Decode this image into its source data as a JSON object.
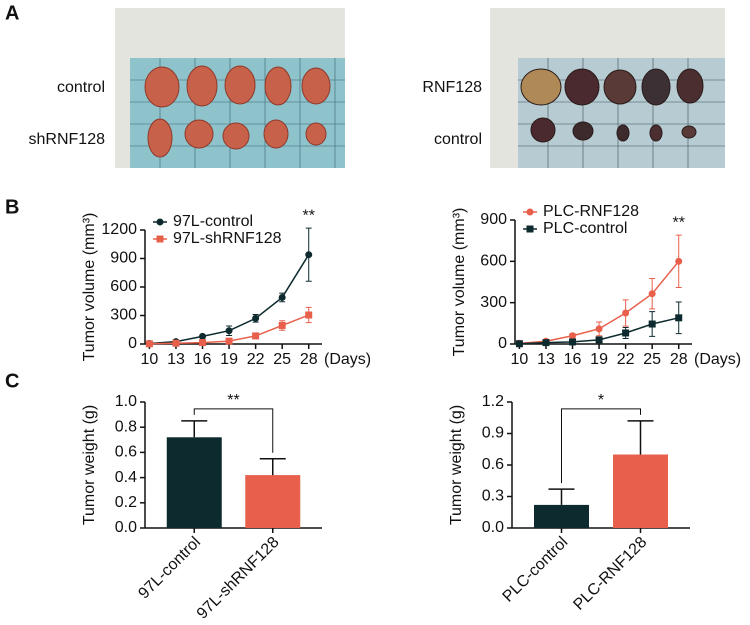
{
  "panel_labels": [
    "A",
    "B",
    "C"
  ],
  "photos": [
    {
      "row_labels": [
        "control",
        "shRNF128"
      ]
    },
    {
      "row_labels": [
        "RNF128",
        "control"
      ]
    }
  ],
  "chart_data": [
    {
      "type": "line",
      "ylabel": "Tumor volume (mm³)",
      "xlabel": "(Days)",
      "annotation": "**",
      "x": [
        10,
        13,
        16,
        19,
        22,
        25,
        28
      ],
      "xlim": [
        9.5,
        29.5
      ],
      "xticks": [
        10,
        13,
        16,
        19,
        22,
        25,
        28
      ],
      "ylim": [
        0,
        1200
      ],
      "yticks": [
        0,
        300,
        600,
        900,
        1200
      ],
      "legend": "upper left",
      "series": [
        {
          "name": "97L-control",
          "color": "#0d2b2e",
          "marker": "circle",
          "values": [
            5,
            25,
            80,
            140,
            270,
            490,
            940
          ],
          "errors": [
            3,
            8,
            15,
            50,
            40,
            45,
            280
          ]
        },
        {
          "name": "97L-shRNF128",
          "color": "#e8604c",
          "marker": "square",
          "values": [
            2,
            8,
            15,
            30,
            85,
            195,
            305
          ],
          "errors": [
            2,
            3,
            5,
            10,
            15,
            50,
            80
          ]
        }
      ]
    },
    {
      "type": "line",
      "ylabel": "Tumor volume (mm³)",
      "xlabel": "(Days)",
      "annotation": "**",
      "x": [
        10,
        13,
        16,
        19,
        22,
        25,
        28
      ],
      "xlim": [
        9.5,
        29.5
      ],
      "xticks": [
        10,
        13,
        16,
        19,
        22,
        25,
        28
      ],
      "ylim": [
        0,
        900
      ],
      "yticks": [
        0,
        300,
        600,
        900
      ],
      "legend": "upper left",
      "series": [
        {
          "name": "PLC-RNF128",
          "color": "#e8604c",
          "marker": "circle",
          "values": [
            5,
            20,
            60,
            110,
            225,
            365,
            600
          ],
          "errors": [
            3,
            8,
            15,
            50,
            95,
            110,
            190
          ]
        },
        {
          "name": "PLC-control",
          "color": "#0d2b2e",
          "marker": "square",
          "values": [
            2,
            10,
            15,
            30,
            80,
            145,
            190
          ],
          "errors": [
            2,
            5,
            8,
            20,
            40,
            90,
            115
          ]
        }
      ]
    },
    {
      "type": "bar",
      "ylabel": "Tumor weight (g)",
      "annotation": "**",
      "categories": [
        "97L-control",
        "97L-shRNF128"
      ],
      "values": [
        0.72,
        0.42
      ],
      "errors": [
        0.13,
        0.13
      ],
      "colors": [
        "#0d2b2e",
        "#e8604c"
      ],
      "ylim": [
        0,
        1.0
      ],
      "yticks": [
        {
          "value": 0,
          "label": "0.0"
        },
        0.2,
        0.4,
        0.6,
        0.8,
        {
          "value": 1,
          "label": "1.0"
        }
      ]
    },
    {
      "type": "bar",
      "ylabel": "Tumor weight (g)",
      "annotation": "*",
      "categories": [
        "PLC-control",
        "PLC-RNF128"
      ],
      "values": [
        0.22,
        0.7
      ],
      "errors": [
        0.15,
        0.32
      ],
      "colors": [
        "#0d2b2e",
        "#e8604c"
      ],
      "ylim": [
        0,
        1.2
      ],
      "yticks": [
        {
          "value": 0,
          "label": "0.0"
        },
        0.3,
        0.6,
        0.9,
        1.2
      ]
    }
  ]
}
